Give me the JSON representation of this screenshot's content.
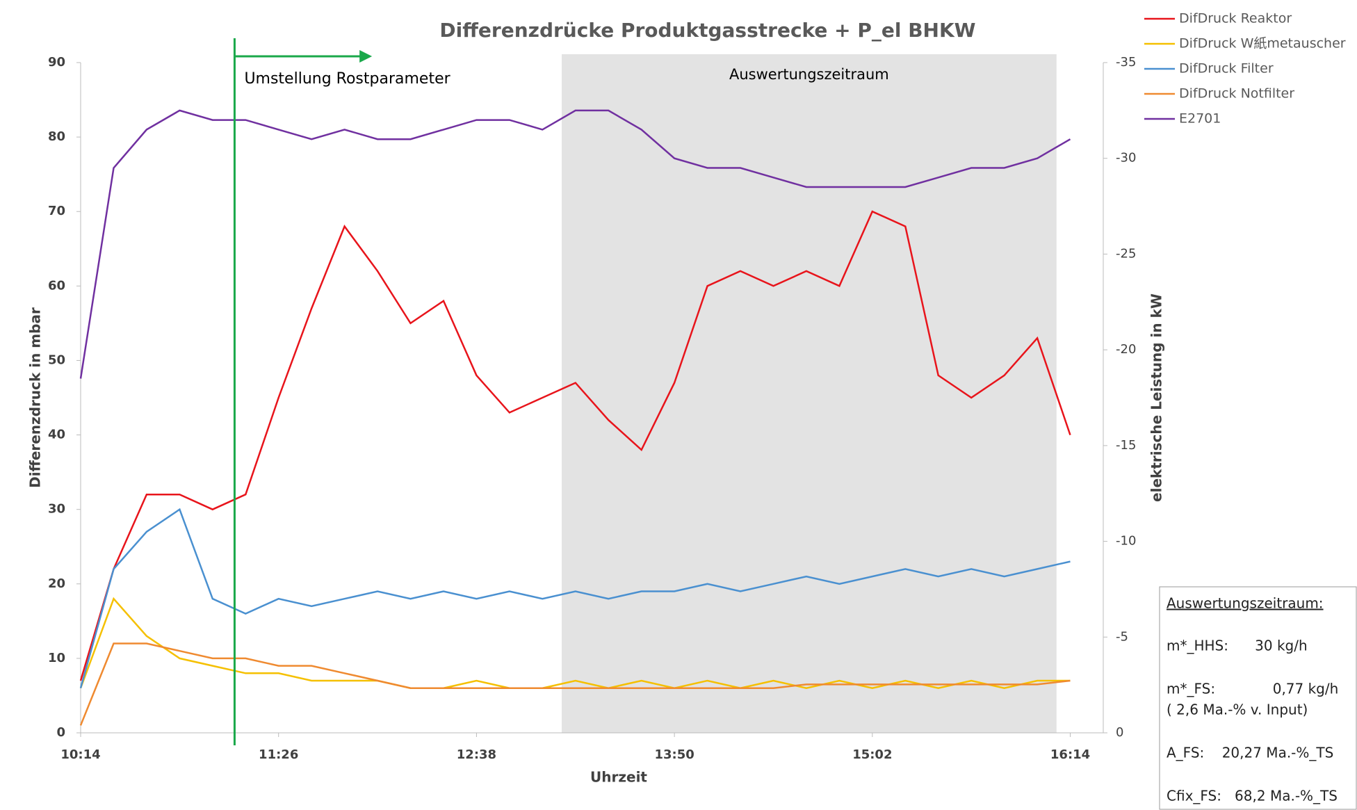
{
  "chart_data": {
    "type": "line",
    "title": "Differenzdrücke Produktgasstrecke + P_el BHKW",
    "x_label": "Uhrzeit",
    "y_label": "Differenzdruck in mbar",
    "y2_label": "elektrische Leistung in kW",
    "x": [
      "10:14",
      "10:26",
      "10:38",
      "10:50",
      "11:02",
      "11:14",
      "11:26",
      "11:38",
      "11:50",
      "12:02",
      "12:14",
      "12:26",
      "12:38",
      "12:50",
      "13:02",
      "13:14",
      "13:26",
      "13:38",
      "13:50",
      "14:02",
      "14:14",
      "14:26",
      "14:38",
      "14:50",
      "15:02",
      "15:14",
      "15:26",
      "15:38",
      "15:50",
      "16:02",
      "16:14"
    ],
    "xlim": [
      "10:14",
      "16:26"
    ],
    "xticks": [
      "10:14",
      "11:26",
      "12:38",
      "13:50",
      "15:02",
      "16:14"
    ],
    "ylim": [
      0,
      90
    ],
    "yticks": [
      0,
      10,
      20,
      30,
      40,
      50,
      60,
      70,
      80,
      90
    ],
    "y2lim": [
      0,
      -35
    ],
    "y2ticks": [
      0,
      -5,
      -10,
      -15,
      -20,
      -25,
      -30,
      -35
    ],
    "series": [
      {
        "name": "DifDruck Reaktor",
        "color": "#e8141b",
        "values": [
          7,
          22,
          32,
          32,
          30,
          32,
          45,
          57,
          68,
          62,
          55,
          58,
          48,
          43,
          45,
          47,
          42,
          38,
          47,
          60,
          62,
          60,
          62,
          60,
          70,
          68,
          48,
          45,
          48,
          53,
          40
        ]
      },
      {
        "name": "DifDruck W紙metauscher",
        "color": "#f5c000",
        "values": [
          6,
          18,
          13,
          10,
          9,
          8,
          8,
          7,
          7,
          7,
          6,
          6,
          7,
          6,
          6,
          7,
          6,
          7,
          6,
          7,
          6,
          7,
          6,
          7,
          6,
          7,
          6,
          7,
          6,
          7,
          7
        ]
      },
      {
        "name": "DifDruck Filter",
        "color": "#4a90d0",
        "values": [
          6,
          22,
          27,
          30,
          18,
          16,
          18,
          17,
          18,
          19,
          18,
          19,
          18,
          19,
          18,
          19,
          18,
          19,
          19,
          20,
          19,
          20,
          21,
          20,
          21,
          22,
          21,
          22,
          21,
          22,
          23
        ]
      },
      {
        "name": "DifDruck Notfilter",
        "color": "#ef8a30",
        "values": [
          1,
          12,
          12,
          11,
          10,
          10,
          9,
          9,
          8,
          7,
          6,
          6,
          6,
          6,
          6,
          6,
          6,
          6,
          6,
          6,
          6,
          6,
          6.5,
          6.5,
          6.5,
          6.5,
          6.5,
          6.5,
          6.5,
          6.5,
          7
        ]
      },
      {
        "name": "E2701",
        "color": "#7030a0",
        "axis": "y2",
        "values": [
          -18.5,
          -29.5,
          -31.5,
          -32.5,
          -32,
          -32,
          -31.5,
          -31,
          -31.5,
          -31,
          -31,
          -31.5,
          -32,
          -32,
          -31.5,
          -32.5,
          -32.5,
          -31.5,
          -30,
          -29.5,
          -29.5,
          -29,
          -28.5,
          -28.5,
          -28.5,
          -28.5,
          -29,
          -29.5,
          -29.5,
          -30,
          -31
        ]
      }
    ],
    "shaded_region": {
      "label": "Auswertungszeitraum",
      "x": [
        "13:09",
        "16:09"
      ],
      "color": "#e3e3e3"
    },
    "marker_line": {
      "label": "Umstellung Rostparameter",
      "x": "11:10",
      "arrow_to": "12:00",
      "color": "#1aa84a"
    },
    "info_box": [
      "Auswertungszeitraum:",
      "m*_HHS:      30 kg/h",
      "m*_FS:             0,77 kg/h",
      "( 2,6 Ma.-% v. Input)",
      "A_FS:    20,27 Ma.-%_TS",
      "Cfix_FS:   68,2 Ma.-%_TS"
    ]
  }
}
